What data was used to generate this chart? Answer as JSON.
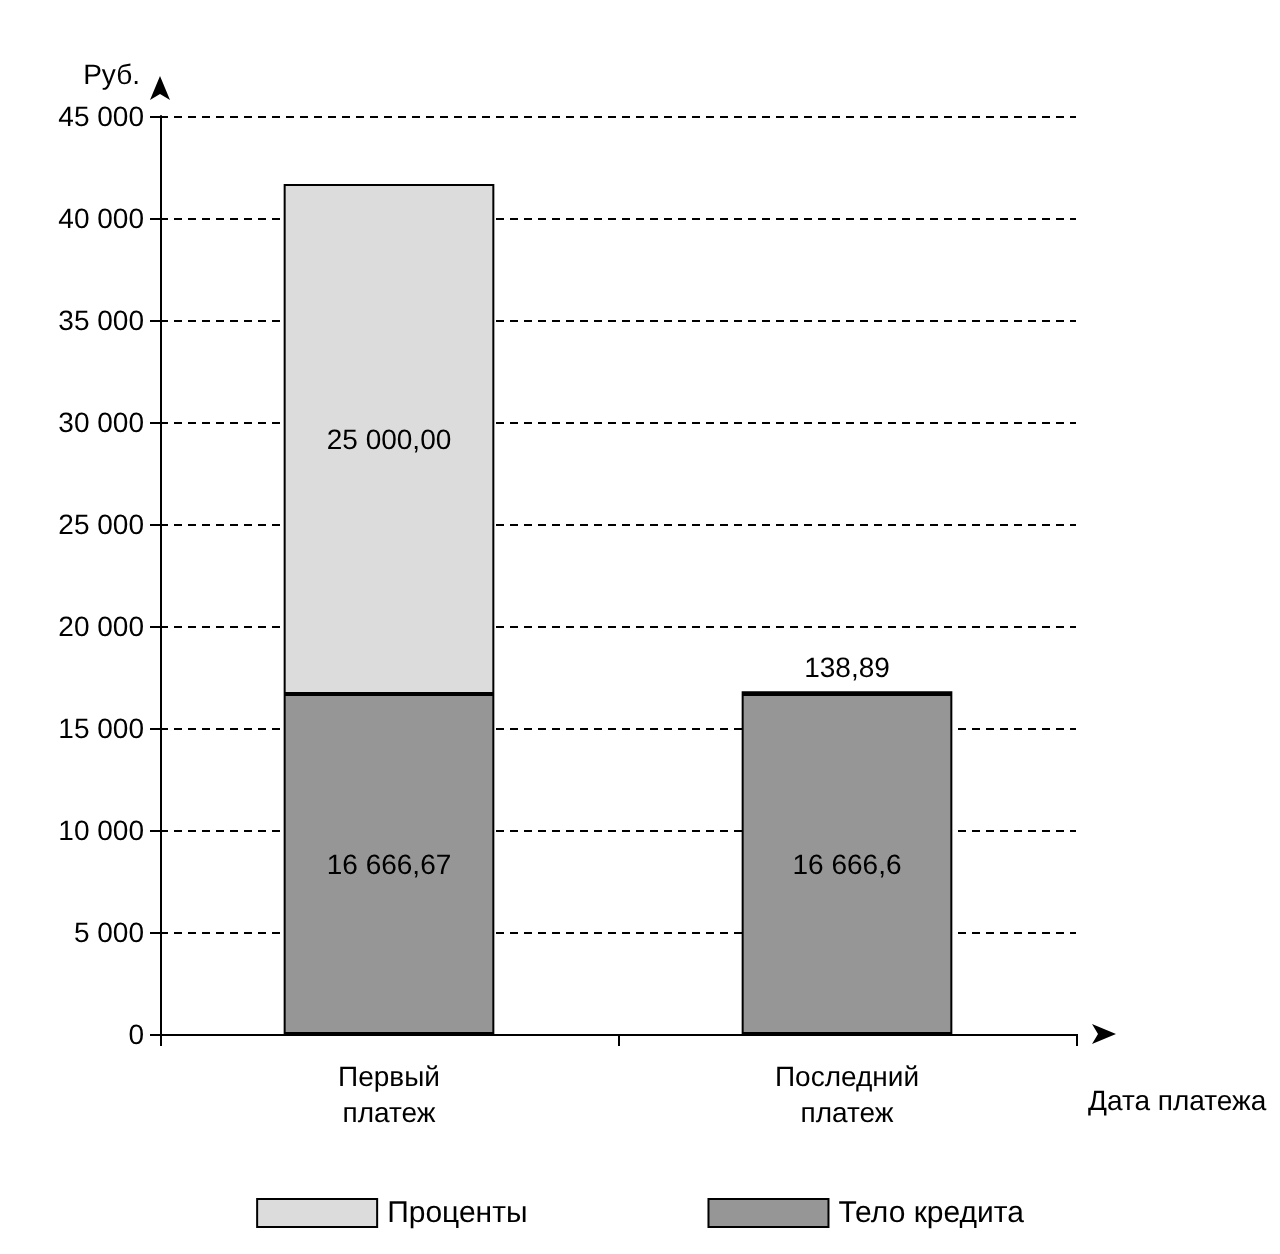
{
  "chart_data": {
    "type": "bar",
    "stacked": true,
    "ylabel": "Руб.",
    "xlabel": "Дата платежа",
    "categories": [
      "Первый\nплатеж",
      "Последний\nплатеж"
    ],
    "series": [
      {
        "name": "Тело кредита",
        "color": "#969696",
        "values": [
          16666.67,
          16666.6
        ],
        "value_labels": [
          "16 666,67",
          "16 666,6"
        ]
      },
      {
        "name": "Проценты",
        "color": "#dcdcdc",
        "values": [
          25000.0,
          138.89
        ],
        "value_labels": [
          "25 000,00",
          "138,89"
        ]
      }
    ],
    "ylim": [
      0,
      45000
    ],
    "yticks": [
      0,
      {
        "value": 5000,
        "label": "5 000"
      },
      {
        "value": 10000,
        "label": "10 000"
      },
      {
        "value": 15000,
        "label": "15 000"
      },
      {
        "value": 20000,
        "label": "20 000"
      },
      {
        "value": 25000,
        "label": "25 000"
      },
      {
        "value": 30000,
        "label": "30 000"
      },
      {
        "value": 35000,
        "label": "35 000"
      },
      {
        "value": 40000,
        "label": "40 000"
      },
      {
        "value": 45000,
        "label": "45 000"
      }
    ],
    "grid": "y",
    "legend": "bottom"
  }
}
